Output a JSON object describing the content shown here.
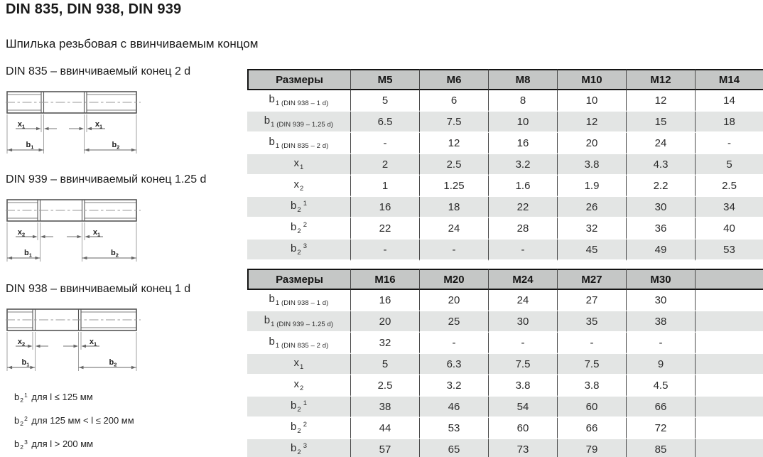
{
  "page": {
    "title": "DIN 835, DIN 938, DIN 939",
    "subtitle": "Шпилька резьбовая с ввинчиваемым концом"
  },
  "colors": {
    "header_bg": "#c5c7c6",
    "row_alt_bg": "#e3e5e4",
    "table_line": "#4a4a4a",
    "table_border": "#141414",
    "drawing_line": "#555555"
  },
  "drawings": [
    {
      "caption": "DIN 835 – ввинчиваемый конец 2 d",
      "dim_left": {
        "base": "x",
        "sub": "1"
      },
      "dim_right": {
        "base": "x",
        "sub": "1"
      },
      "dim_b_left": {
        "base": "b",
        "sub": "1"
      },
      "dim_b_right": {
        "base": "b",
        "sub": "2"
      }
    },
    {
      "caption": "DIN 939 – ввинчиваемый конец 1.25 d",
      "dim_left": {
        "base": "x",
        "sub": "2"
      },
      "dim_right": {
        "base": "x",
        "sub": "1"
      },
      "dim_b_left": {
        "base": "b",
        "sub": "1"
      },
      "dim_b_right": {
        "base": "b",
        "sub": "2"
      }
    },
    {
      "caption": "DIN 938 – ввинчиваемый конец 1 d",
      "dim_left": {
        "base": "x",
        "sub": "2"
      },
      "dim_right": {
        "base": "x",
        "sub": "1"
      },
      "dim_b_left": {
        "base": "b",
        "sub": "1"
      },
      "dim_b_right": {
        "base": "b",
        "sub": "2"
      }
    }
  ],
  "footnotes": [
    {
      "label": {
        "base": "b",
        "sub": "2",
        "sup": "1"
      },
      "text": "для l ≤ 125 мм"
    },
    {
      "label": {
        "base": "b",
        "sub": "2",
        "sup": "2"
      },
      "text": "для 125 мм < l ≤ 200 мм"
    },
    {
      "label": {
        "base": "b",
        "sub": "2",
        "sup": "3"
      },
      "text": "для l > 200 мм"
    }
  ],
  "tables": [
    {
      "headers": [
        "Размеры",
        "M5",
        "M6",
        "M8",
        "M10",
        "M12",
        "M14"
      ],
      "rows": [
        {
          "label": {
            "base": "b",
            "sub": "1 (DIN 938 – 1 d)"
          },
          "values": [
            "5",
            "6",
            "8",
            "10",
            "12",
            "14"
          ]
        },
        {
          "label": {
            "base": "b",
            "sub": "1 (DIN 939 – 1.25 d)"
          },
          "values": [
            "6.5",
            "7.5",
            "10",
            "12",
            "15",
            "18"
          ]
        },
        {
          "label": {
            "base": "b",
            "sub": "1 (DIN 835 – 2 d)"
          },
          "values": [
            "-",
            "12",
            "16",
            "20",
            "24",
            "-"
          ]
        },
        {
          "label": {
            "base": "x",
            "sub": "1"
          },
          "values": [
            "2",
            "2.5",
            "3.2",
            "3.8",
            "4.3",
            "5"
          ]
        },
        {
          "label": {
            "base": "x",
            "sub": "2"
          },
          "values": [
            "1",
            "1.25",
            "1.6",
            "1.9",
            "2.2",
            "2.5"
          ]
        },
        {
          "label": {
            "base": "b",
            "sub": "2",
            "sup": "1"
          },
          "values": [
            "16",
            "18",
            "22",
            "26",
            "30",
            "34"
          ]
        },
        {
          "label": {
            "base": "b",
            "sub": "2",
            "sup": "2"
          },
          "values": [
            "22",
            "24",
            "28",
            "32",
            "36",
            "40"
          ]
        },
        {
          "label": {
            "base": "b",
            "sub": "2",
            "sup": "3"
          },
          "values": [
            "-",
            "-",
            "-",
            "45",
            "49",
            "53"
          ]
        }
      ]
    },
    {
      "headers": [
        "Размеры",
        "M16",
        "M20",
        "M24",
        "M27",
        "M30",
        ""
      ],
      "rows": [
        {
          "label": {
            "base": "b",
            "sub": "1 (DIN 938 – 1 d)"
          },
          "values": [
            "16",
            "20",
            "24",
            "27",
            "30",
            ""
          ]
        },
        {
          "label": {
            "base": "b",
            "sub": "1 (DIN 939 – 1.25 d)"
          },
          "values": [
            "20",
            "25",
            "30",
            "35",
            "38",
            ""
          ]
        },
        {
          "label": {
            "base": "b",
            "sub": "1 (DIN 835 – 2 d)"
          },
          "values": [
            "32",
            "-",
            "-",
            "-",
            "-",
            ""
          ]
        },
        {
          "label": {
            "base": "x",
            "sub": "1"
          },
          "values": [
            "5",
            "6.3",
            "7.5",
            "7.5",
            "9",
            ""
          ]
        },
        {
          "label": {
            "base": "x",
            "sub": "2"
          },
          "values": [
            "2.5",
            "3.2",
            "3.8",
            "3.8",
            "4.5",
            ""
          ]
        },
        {
          "label": {
            "base": "b",
            "sub": "2",
            "sup": "1"
          },
          "values": [
            "38",
            "46",
            "54",
            "60",
            "66",
            ""
          ]
        },
        {
          "label": {
            "base": "b",
            "sub": "2",
            "sup": "2"
          },
          "values": [
            "44",
            "53",
            "60",
            "66",
            "72",
            ""
          ]
        },
        {
          "label": {
            "base": "b",
            "sub": "2",
            "sup": "3"
          },
          "values": [
            "57",
            "65",
            "73",
            "79",
            "85",
            ""
          ]
        }
      ]
    }
  ]
}
